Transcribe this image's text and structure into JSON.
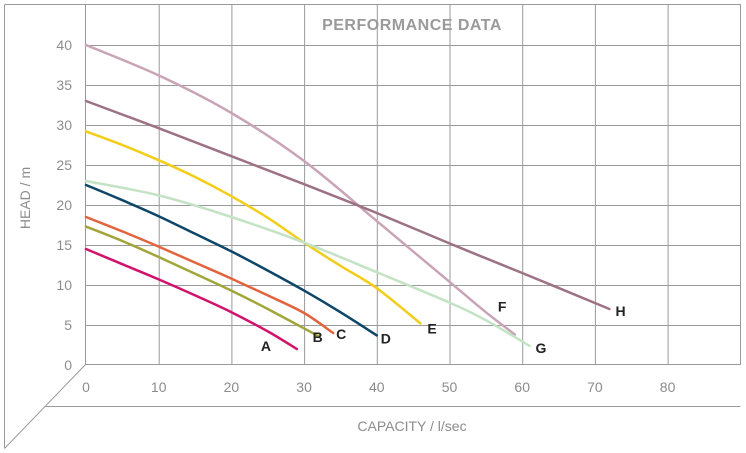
{
  "chart_data": {
    "type": "line",
    "title": "PERFORMANCE DATA",
    "xlabel": "CAPACITY / l/sec",
    "ylabel": "HEAD / m",
    "xlim": [
      0,
      90
    ],
    "ylim": [
      0,
      40
    ],
    "xticks": [
      0,
      10,
      20,
      30,
      40,
      50,
      60,
      70,
      80
    ],
    "yticks": [
      0,
      5,
      10,
      15,
      20,
      25,
      30,
      35,
      40
    ],
    "grid": true,
    "legend": "inline labels at curve ends",
    "series": [
      {
        "name": "A",
        "color": "#d0136b",
        "x": [
          0,
          5,
          10,
          15,
          20,
          25,
          29
        ],
        "y": [
          14.5,
          12.6,
          10.7,
          8.7,
          6.6,
          4.2,
          2.0
        ]
      },
      {
        "name": "B",
        "color": "#a2a63a",
        "x": [
          0,
          5,
          10,
          15,
          20,
          25,
          32
        ],
        "y": [
          17.3,
          15.5,
          13.5,
          11.4,
          9.3,
          7.0,
          3.6
        ]
      },
      {
        "name": "C",
        "color": "#e2643f",
        "x": [
          0,
          5,
          10,
          15,
          20,
          25,
          30,
          34
        ],
        "y": [
          18.5,
          16.7,
          14.8,
          12.8,
          10.8,
          8.7,
          6.5,
          4.0
        ]
      },
      {
        "name": "D",
        "color": "#0d4667",
        "x": [
          0,
          5,
          10,
          15,
          20,
          25,
          30,
          35,
          40
        ],
        "y": [
          22.5,
          20.6,
          18.6,
          16.4,
          14.2,
          11.8,
          9.3,
          6.6,
          3.7
        ]
      },
      {
        "name": "E",
        "color": "#f2cd1a",
        "x": [
          0,
          5,
          10,
          15,
          20,
          25,
          30,
          35,
          40,
          46
        ],
        "y": [
          29.2,
          27.5,
          25.6,
          23.5,
          21.1,
          18.4,
          15.3,
          12.4,
          9.6,
          5.2
        ]
      },
      {
        "name": "F",
        "color": "#c8a4b6",
        "x": [
          0,
          10,
          20,
          30,
          40,
          45,
          50,
          55,
          59
        ],
        "y": [
          40.0,
          36.2,
          31.5,
          25.5,
          18.0,
          14.2,
          10.4,
          6.6,
          3.8
        ]
      },
      {
        "name": "G",
        "color": "#c3e3c4",
        "x": [
          0,
          10,
          20,
          30,
          40,
          50,
          55,
          61
        ],
        "y": [
          23.0,
          21.2,
          18.5,
          15.3,
          11.6,
          7.8,
          5.6,
          2.4
        ]
      },
      {
        "name": "H",
        "color": "#9d7287",
        "x": [
          0,
          10,
          20,
          30,
          40,
          50,
          60,
          72
        ],
        "y": [
          33.0,
          29.6,
          26.1,
          22.6,
          19.0,
          15.2,
          11.5,
          7.0
        ]
      }
    ]
  }
}
